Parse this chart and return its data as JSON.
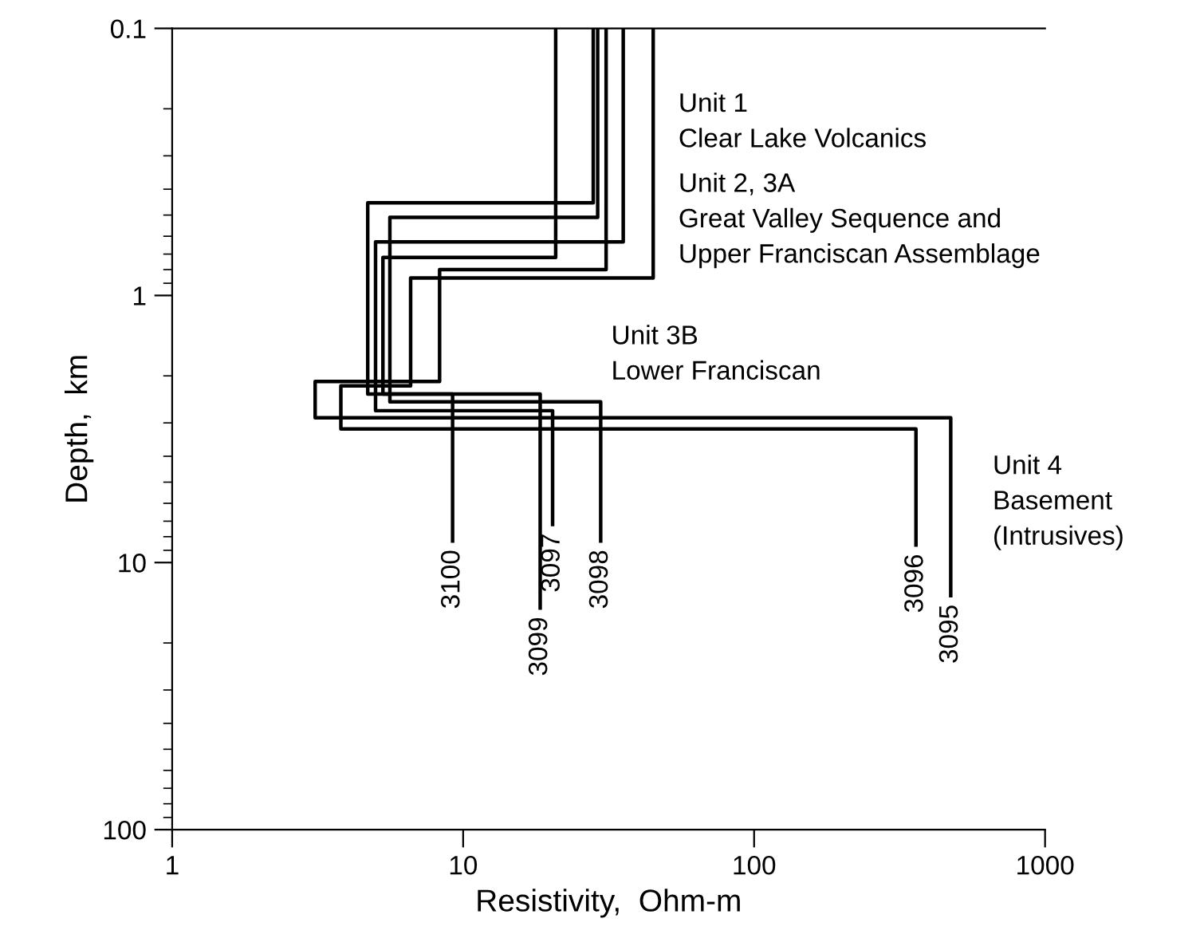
{
  "chart_data": {
    "type": "line",
    "xlabel": "Resistivity,  Ohm-m",
    "ylabel": "Depth,  km",
    "log": "xy",
    "xlim": [
      1,
      1000
    ],
    "ylim": [
      100,
      0.1
    ],
    "xticks": [
      1,
      10,
      100,
      1000
    ],
    "yticks": [
      0.1,
      1,
      10,
      100
    ],
    "grid": false,
    "legend": false,
    "marker": "none",
    "line_style": "solid",
    "series": [
      {
        "name": "3095",
        "color": "#000000",
        "x": [
          31,
          31,
          8.3,
          8.3,
          3.1,
          3.1,
          474,
          474
        ],
        "values": [
          0.1,
          0.8,
          0.8,
          2.1,
          2.1,
          2.87,
          2.87,
          13.3
        ]
      },
      {
        "name": "3096",
        "color": "#000000",
        "x": [
          45,
          45,
          6.6,
          6.6,
          3.8,
          3.8,
          360,
          360
        ],
        "values": [
          0.1,
          0.86,
          0.86,
          2.18,
          2.18,
          3.16,
          3.16,
          8.6
        ]
      },
      {
        "name": "3097",
        "color": "#000000",
        "x": [
          35.5,
          35.5,
          5.0,
          5.0,
          20.3,
          20.3
        ],
        "values": [
          0.1,
          0.63,
          0.63,
          2.7,
          2.7,
          7.2
        ]
      },
      {
        "name": "3098",
        "color": "#000000",
        "x": [
          29,
          29,
          5.6,
          5.6,
          29.7,
          29.7
        ],
        "values": [
          0.1,
          0.51,
          0.51,
          2.5,
          2.5,
          8.3
        ]
      },
      {
        "name": "3099",
        "color": "#000000",
        "x": [
          28,
          28,
          4.7,
          4.7,
          18.4,
          18.4
        ],
        "values": [
          0.1,
          0.45,
          0.45,
          2.34,
          2.34,
          14.8
        ]
      },
      {
        "name": "3100",
        "color": "#000000",
        "x": [
          20.8,
          20.8,
          5.3,
          5.3,
          9.2,
          9.2
        ],
        "values": [
          0.1,
          0.72,
          0.72,
          2.34,
          2.34,
          8.3
        ]
      }
    ],
    "annotations": [
      "Unit 1\nClear Lake Volcanics",
      "Unit 2, 3A\nGreat Valley Sequence and\nUpper Franciscan Assemblage",
      "Unit 3B\nLower Franciscan",
      "Unit 4\nBasement\n(Intrusives)"
    ]
  }
}
